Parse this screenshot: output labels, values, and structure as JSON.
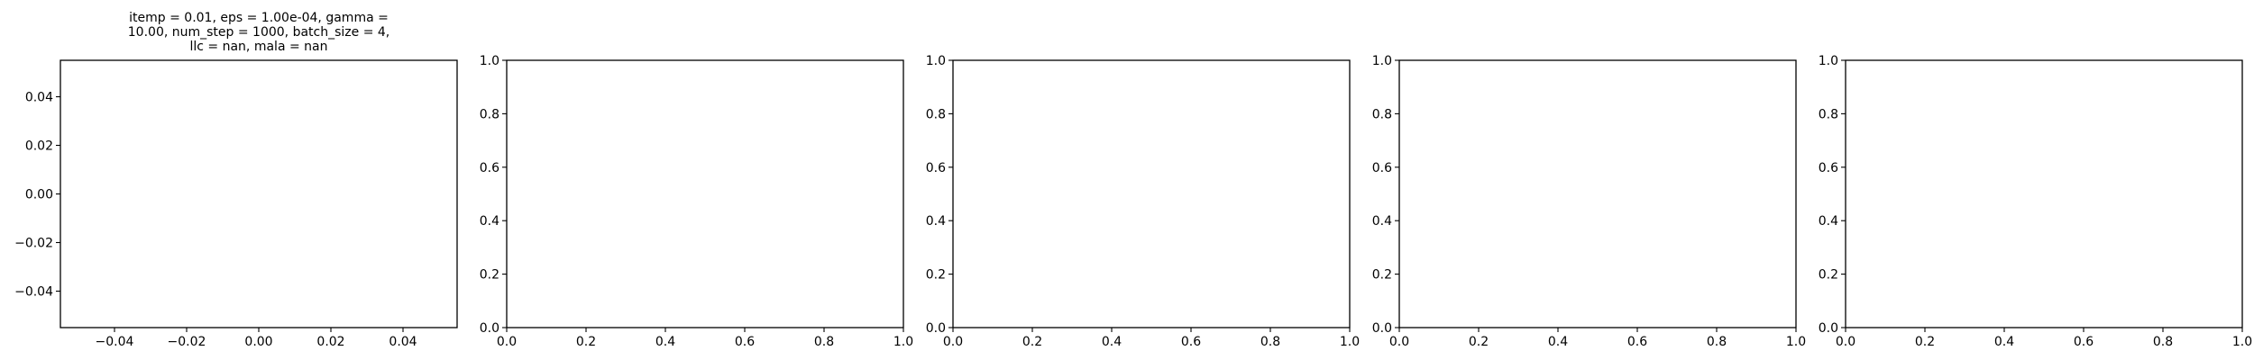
{
  "chart_data": [
    {
      "type": "line",
      "title": "itemp = 0.01, eps = 1.00e-04, gamma = 10.00, num_step = 1000, batch_size = 4, llc = nan, mala = nan",
      "title_lines": [
        "itemp = 0.01, eps = 1.00e-04, gamma =",
        "10.00, num_step = 1000, batch_size = 4,",
        "llc = nan, mala = nan"
      ],
      "series": [],
      "xlim": [
        -0.055,
        0.055
      ],
      "ylim": [
        -0.055,
        0.055
      ],
      "xticks": [
        -0.04,
        -0.02,
        0.0,
        0.02,
        0.04
      ],
      "yticks": [
        -0.04,
        -0.02,
        0.0,
        0.02,
        0.04
      ],
      "xtick_labels": [
        "−0.04",
        "−0.02",
        "0.00",
        "0.02",
        "0.04"
      ],
      "ytick_labels": [
        "−0.04",
        "−0.02",
        "0.00",
        "0.02",
        "0.04"
      ],
      "grid": false
    },
    {
      "type": "line",
      "title": "",
      "series": [],
      "xlim": [
        0,
        1
      ],
      "ylim": [
        0,
        1
      ],
      "xticks": [
        0,
        0.2,
        0.4,
        0.6,
        0.8,
        1.0
      ],
      "yticks": [
        0,
        0.2,
        0.4,
        0.6,
        0.8,
        1.0
      ],
      "xtick_labels": [
        "0.0",
        "0.2",
        "0.4",
        "0.6",
        "0.8",
        "1.0"
      ],
      "ytick_labels": [
        "0.0",
        "0.2",
        "0.4",
        "0.6",
        "0.8",
        "1.0"
      ],
      "grid": false
    },
    {
      "type": "line",
      "title": "",
      "series": [],
      "xlim": [
        0,
        1
      ],
      "ylim": [
        0,
        1
      ],
      "xticks": [
        0,
        0.2,
        0.4,
        0.6,
        0.8,
        1.0
      ],
      "yticks": [
        0,
        0.2,
        0.4,
        0.6,
        0.8,
        1.0
      ],
      "xtick_labels": [
        "0.0",
        "0.2",
        "0.4",
        "0.6",
        "0.8",
        "1.0"
      ],
      "ytick_labels": [
        "0.0",
        "0.2",
        "0.4",
        "0.6",
        "0.8",
        "1.0"
      ],
      "grid": false
    },
    {
      "type": "line",
      "title": "",
      "series": [],
      "xlim": [
        0,
        1
      ],
      "ylim": [
        0,
        1
      ],
      "xticks": [
        0,
        0.2,
        0.4,
        0.6,
        0.8,
        1.0
      ],
      "yticks": [
        0,
        0.2,
        0.4,
        0.6,
        0.8,
        1.0
      ],
      "xtick_labels": [
        "0.0",
        "0.2",
        "0.4",
        "0.6",
        "0.8",
        "1.0"
      ],
      "ytick_labels": [
        "0.0",
        "0.2",
        "0.4",
        "0.6",
        "0.8",
        "1.0"
      ],
      "grid": false
    },
    {
      "type": "line",
      "title": "",
      "series": [],
      "xlim": [
        0,
        1
      ],
      "ylim": [
        0,
        1
      ],
      "xticks": [
        0,
        0.2,
        0.4,
        0.6,
        0.8,
        1.0
      ],
      "yticks": [
        0,
        0.2,
        0.4,
        0.6,
        0.8,
        1.0
      ],
      "xtick_labels": [
        "0.0",
        "0.2",
        "0.4",
        "0.6",
        "0.8",
        "1.0"
      ],
      "ytick_labels": [
        "0.0",
        "0.2",
        "0.4",
        "0.6",
        "0.8",
        "1.0"
      ],
      "grid": false
    }
  ]
}
